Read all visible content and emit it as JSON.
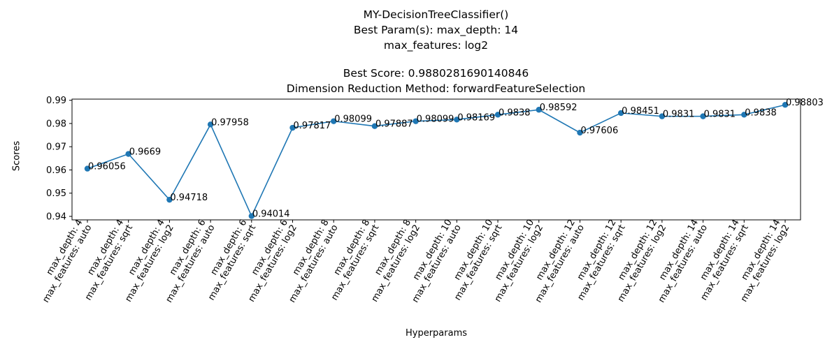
{
  "chart_data": {
    "type": "line",
    "title": "MY-DecisionTreeClassifier()",
    "subtitle_lines": [
      "Best Param(s): max_depth: 14",
      "max_features: log2",
      "",
      "Best Score: 0.9880281690140846",
      "Dimension Reduction Method: forwardFeatureSelection"
    ],
    "xlabel": "Hyperparams",
    "ylabel": "Scores",
    "ylim": [
      0.9385,
      0.9905
    ],
    "yticks": [
      0.94,
      0.95,
      0.96,
      0.97,
      0.98,
      0.99
    ],
    "ytick_labels": [
      "0.94",
      "0.95",
      "0.96",
      "0.97",
      "0.98",
      "0.99"
    ],
    "grid": false,
    "line_color": "#1f77b4",
    "categories": [
      [
        "max_depth: 4",
        "max_features: auto"
      ],
      [
        "max_depth: 4",
        "max_features: sqrt"
      ],
      [
        "max_depth: 4",
        "max_features: log2"
      ],
      [
        "max_depth: 6",
        "max_features: auto"
      ],
      [
        "max_depth: 6",
        "max_features: sqrt"
      ],
      [
        "max_depth: 6",
        "max_features: log2"
      ],
      [
        "max_depth: 8",
        "max_features: auto"
      ],
      [
        "max_depth: 8",
        "max_features: sqrt"
      ],
      [
        "max_depth: 8",
        "max_features: log2"
      ],
      [
        "max_depth: 10",
        "max_features: auto"
      ],
      [
        "max_depth: 10",
        "max_features: sqrt"
      ],
      [
        "max_depth: 10",
        "max_features: log2"
      ],
      [
        "max_depth: 12",
        "max_features: auto"
      ],
      [
        "max_depth: 12",
        "max_features: sqrt"
      ],
      [
        "max_depth: 12",
        "max_features: log2"
      ],
      [
        "max_depth: 14",
        "max_features: auto"
      ],
      [
        "max_depth: 14",
        "max_features: sqrt"
      ],
      [
        "max_depth: 14",
        "max_features: log2"
      ]
    ],
    "values": [
      0.96056,
      0.9669,
      0.94718,
      0.97958,
      0.94014,
      0.97817,
      0.98099,
      0.97887,
      0.98099,
      0.98169,
      0.9838,
      0.98592,
      0.97606,
      0.98451,
      0.9831,
      0.9831,
      0.9838,
      0.98803
    ],
    "data_labels": [
      "0.96056",
      "0.9669",
      "0.94718",
      "0.97958",
      "0.94014",
      "0.97817",
      "0.98099",
      "0.97887",
      "0.98099",
      "0.98169",
      "0.9838",
      "0.98592",
      "0.97606",
      "0.98451",
      "0.9831",
      "0.9831",
      "0.9838",
      "0.98803"
    ]
  }
}
